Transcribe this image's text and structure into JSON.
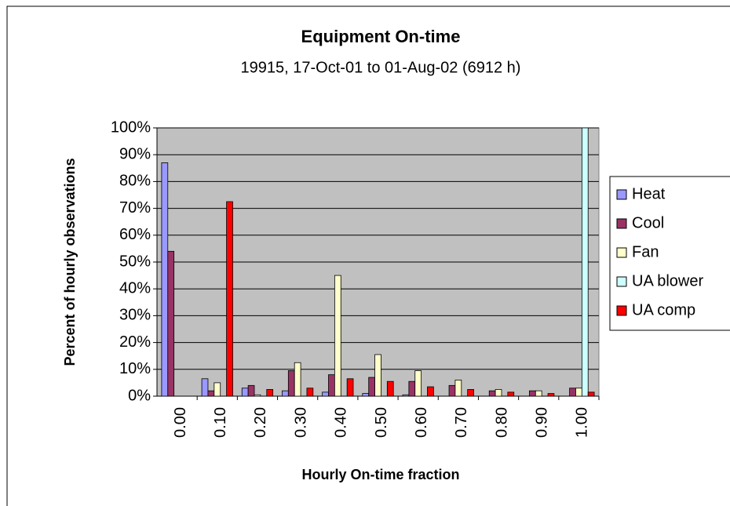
{
  "chart_data": {
    "type": "bar",
    "title": "Equipment On-time",
    "subtitle": "19915, 17-Oct-01 to 01-Aug-02  (6912 h)",
    "x_label": "Hourly On-time fraction",
    "y_label": "Percent of hourly observations",
    "categories": [
      "0.00",
      "0.10",
      "0.20",
      "0.30",
      "0.40",
      "0.50",
      "0.60",
      "0.70",
      "0.80",
      "0.90",
      "1.00"
    ],
    "series": [
      {
        "name": "Heat",
        "color": "#9999ff",
        "values": [
          87,
          6.5,
          3,
          2,
          1.5,
          1,
          0.5,
          0,
          0,
          0,
          0
        ]
      },
      {
        "name": "Cool",
        "color": "#993366",
        "values": [
          54,
          2,
          4,
          9.5,
          8,
          7,
          5.5,
          4,
          2,
          2,
          3
        ]
      },
      {
        "name": "Fan",
        "color": "#ffffcc",
        "values": [
          0,
          5,
          0.5,
          12.5,
          45,
          15.5,
          9.5,
          6,
          2.5,
          2,
          3
        ]
      },
      {
        "name": "UA blower",
        "color": "#ccffff",
        "values": [
          0,
          0,
          0,
          0,
          0,
          0,
          0,
          0,
          0,
          0,
          100
        ]
      },
      {
        "name": "UA comp",
        "color": "#ff0000",
        "values": [
          0,
          72.5,
          2.5,
          3,
          6.5,
          5.5,
          3.5,
          2.5,
          1.5,
          1,
          1.5
        ]
      }
    ],
    "ylim": [
      0,
      100
    ],
    "yticks": [
      {
        "value": 0,
        "label": "0%"
      },
      {
        "value": 10,
        "label": "10%"
      },
      {
        "value": 20,
        "label": "20%"
      },
      {
        "value": 30,
        "label": "30%"
      },
      {
        "value": 40,
        "label": "40%"
      },
      {
        "value": 50,
        "label": "50%"
      },
      {
        "value": 60,
        "label": "60%"
      },
      {
        "value": 70,
        "label": "70%"
      },
      {
        "value": 80,
        "label": "80%"
      },
      {
        "value": 90,
        "label": "90%"
      },
      {
        "value": 100,
        "label": "100%"
      }
    ],
    "grid": true,
    "legend": "right",
    "plot_background": "#c0c0c0"
  }
}
